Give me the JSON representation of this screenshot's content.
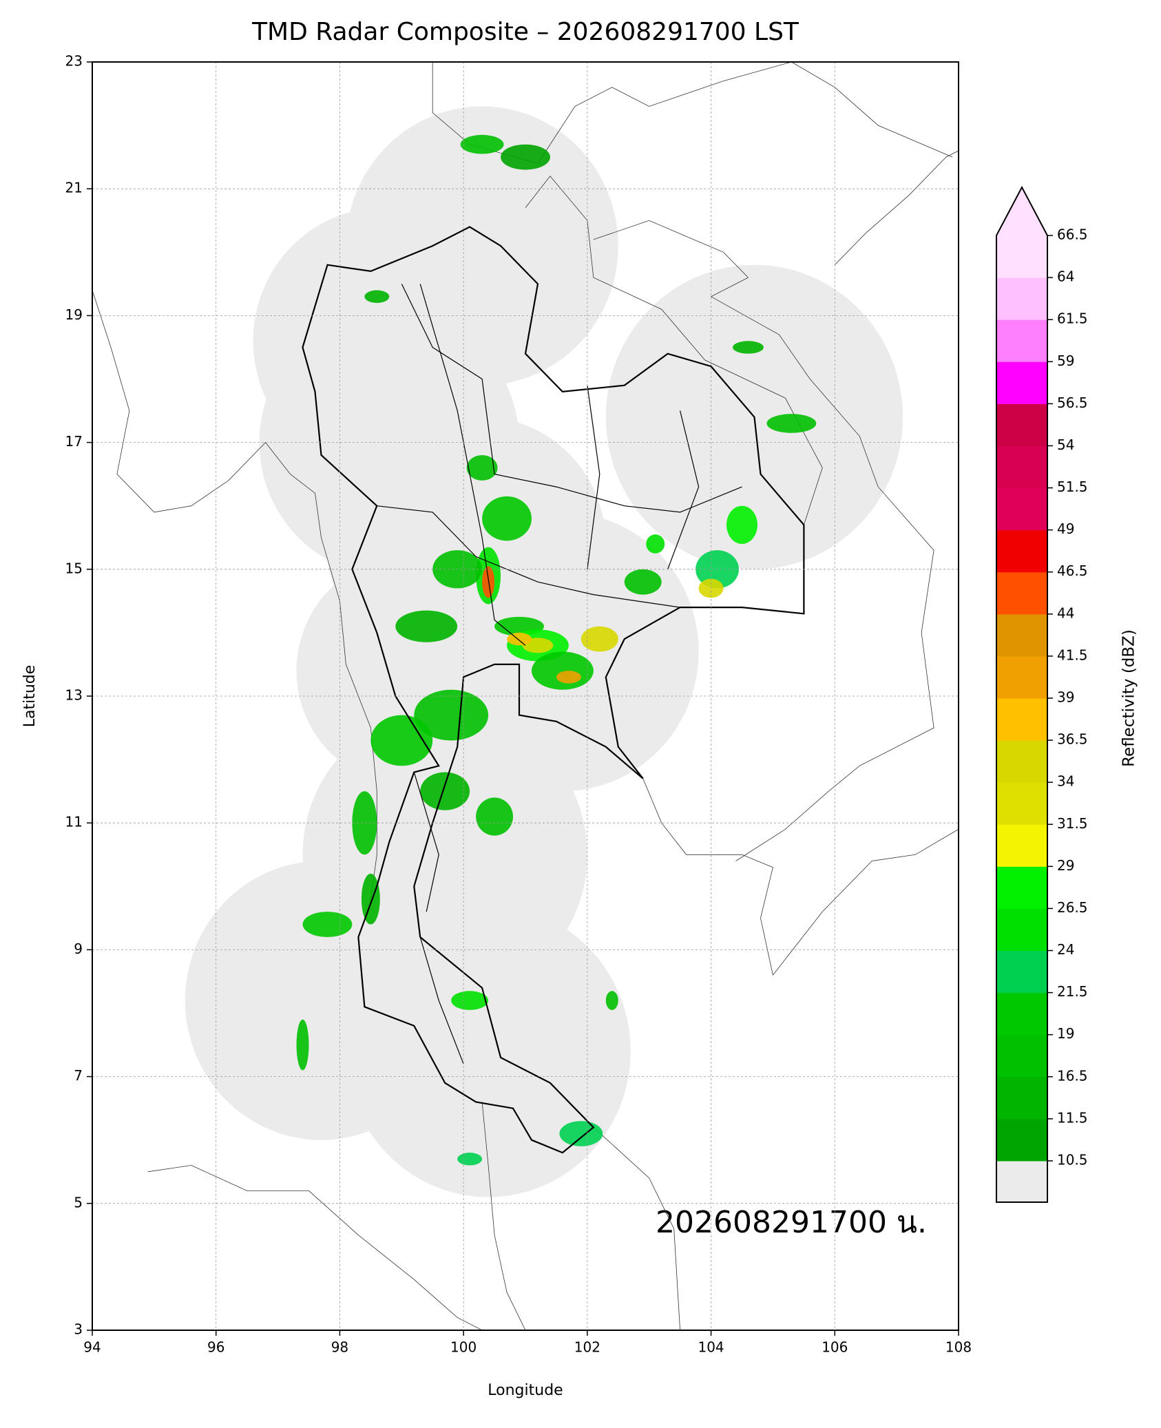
{
  "chart_data": {
    "type": "map",
    "title": "TMD Radar Composite – 202608291700 LST",
    "x_label": "Longitude",
    "y_label": "Latitude",
    "annotation": "202608291700 น.",
    "xlim": [
      94,
      108
    ],
    "ylim": [
      3,
      23
    ],
    "xticks": [
      94,
      96,
      98,
      100,
      102,
      104,
      106,
      108
    ],
    "yticks": [
      3,
      5,
      7,
      9,
      11,
      13,
      15,
      17,
      19,
      21,
      23
    ],
    "grid": true,
    "colorbar": {
      "label": "Reflectivity (dBZ)",
      "ticks": [
        10.5,
        11.5,
        16.5,
        19.0,
        21.5,
        24.0,
        26.5,
        29.0,
        31.5,
        34.0,
        36.5,
        39.0,
        41.5,
        44.0,
        46.5,
        49.0,
        51.5,
        54.0,
        56.5,
        59.0,
        61.5,
        64.0,
        66.5
      ],
      "colors": [
        "#00a400",
        "#00b400",
        "#00c000",
        "#00c800",
        "#00d050",
        "#00e000",
        "#00f000",
        "#f4f400",
        "#e0e000",
        "#d8d800",
        "#ffc000",
        "#f0a000",
        "#e09400",
        "#ff5000",
        "#f00000",
        "#e0005a",
        "#d80050",
        "#cc0044",
        "#ff00ff",
        "#ff80ff",
        "#ffc0ff",
        "#ffe0ff"
      ],
      "under_color": "#ebebeb",
      "over_color": "#ffe0ff"
    }
  }
}
